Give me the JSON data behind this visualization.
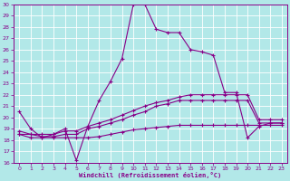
{
  "xlabel": "Windchill (Refroidissement éolien,°C)",
  "background_color": "#b2e8e8",
  "grid_color": "#ffffff",
  "line_color": "#880088",
  "xlim": [
    -0.5,
    23.5
  ],
  "ylim": [
    16,
    30
  ],
  "xticks": [
    0,
    1,
    2,
    3,
    4,
    5,
    6,
    7,
    8,
    9,
    10,
    11,
    12,
    13,
    14,
    15,
    16,
    17,
    18,
    19,
    20,
    21,
    22,
    23
  ],
  "yticks": [
    16,
    17,
    18,
    19,
    20,
    21,
    22,
    23,
    24,
    25,
    26,
    27,
    28,
    29,
    30
  ],
  "series1_y": [
    20.5,
    19.0,
    18.2,
    18.5,
    19.0,
    16.2,
    19.2,
    21.5,
    23.2,
    25.2,
    30.0,
    30.0,
    27.8,
    27.5,
    27.5,
    26.0,
    25.8,
    25.5,
    22.2,
    22.2,
    18.2,
    19.2,
    19.5,
    19.5
  ],
  "series2_y": [
    18.5,
    18.5,
    18.3,
    18.3,
    18.5,
    18.5,
    19.0,
    19.2,
    19.5,
    19.8,
    20.2,
    20.5,
    21.0,
    21.2,
    21.5,
    21.5,
    21.5,
    21.5,
    21.5,
    21.5,
    21.5,
    19.5,
    19.5,
    19.5
  ],
  "series3_y": [
    18.8,
    18.5,
    18.5,
    18.5,
    18.8,
    18.8,
    19.2,
    19.5,
    19.8,
    20.2,
    20.6,
    21.0,
    21.3,
    21.5,
    21.8,
    22.0,
    22.0,
    22.0,
    22.0,
    22.0,
    22.0,
    19.8,
    19.8,
    19.8
  ],
  "series4_y": [
    18.5,
    18.2,
    18.2,
    18.2,
    18.2,
    18.2,
    18.2,
    18.3,
    18.5,
    18.7,
    18.9,
    19.0,
    19.1,
    19.2,
    19.3,
    19.3,
    19.3,
    19.3,
    19.3,
    19.3,
    19.3,
    19.3,
    19.3,
    19.3
  ]
}
